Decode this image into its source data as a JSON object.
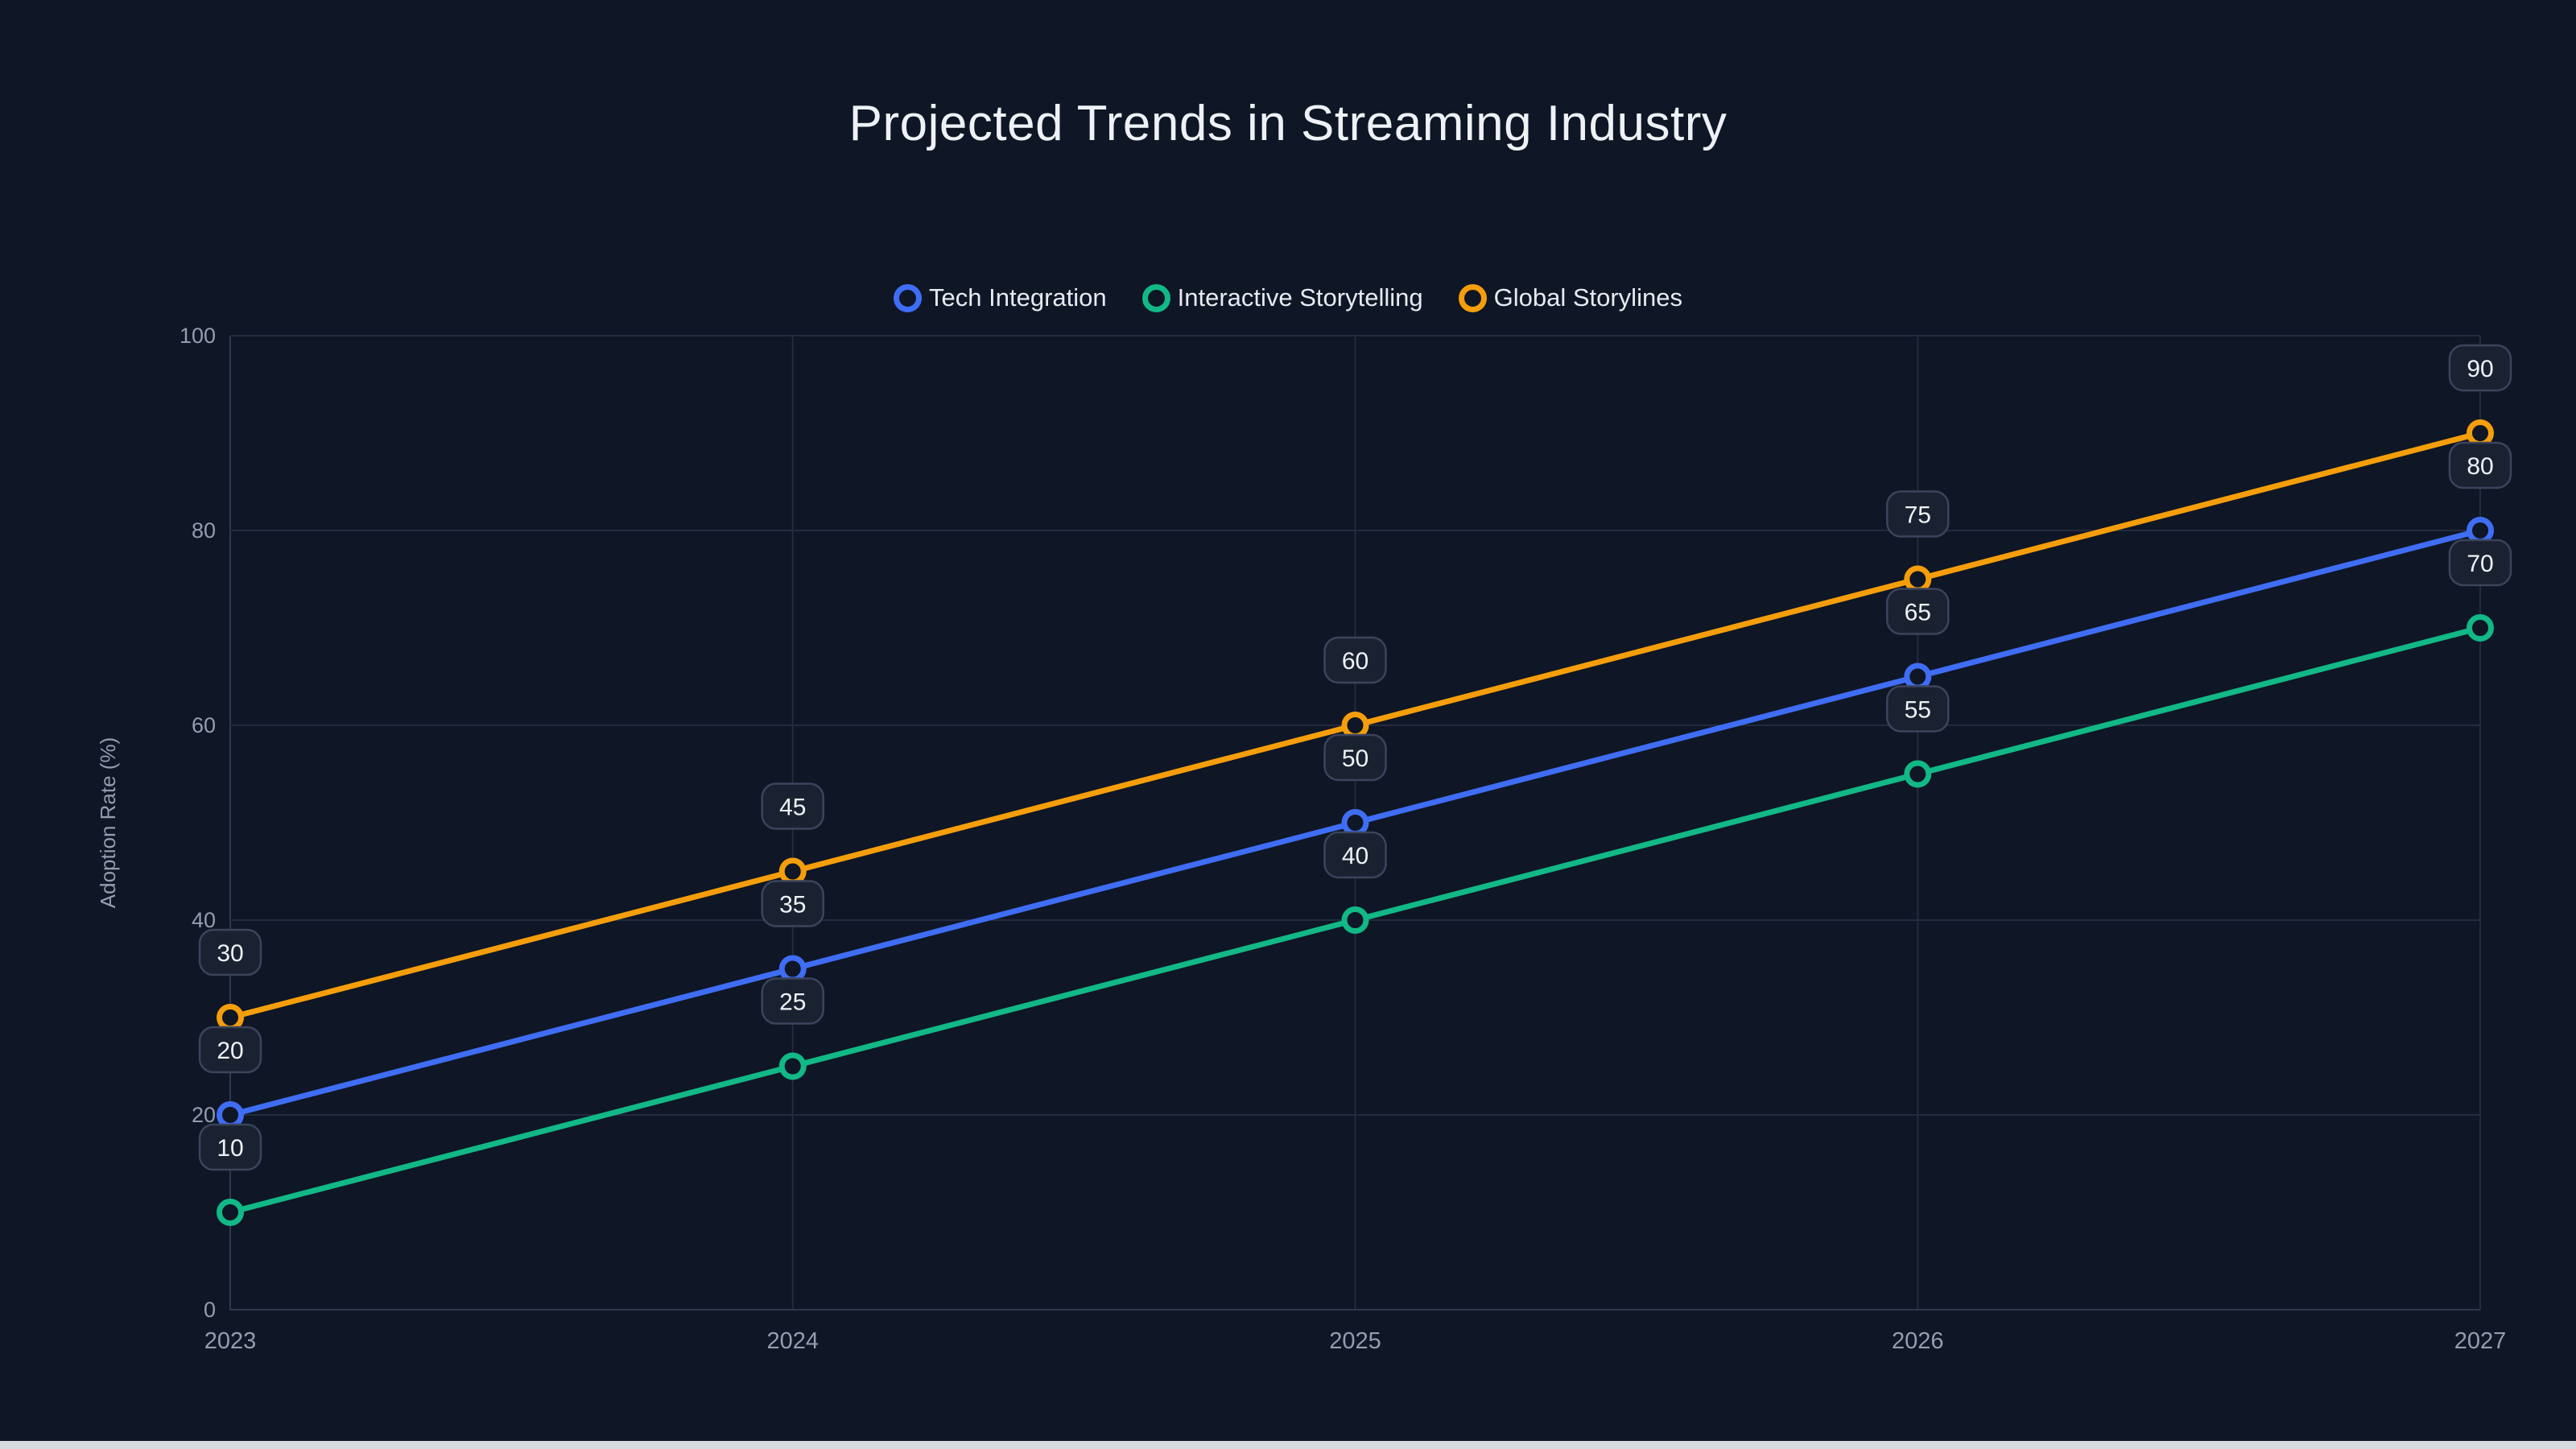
{
  "title": "Projected Trends in Streaming Industry",
  "y_axis": {
    "label": "Adoption Rate (%)"
  },
  "chart_data": {
    "type": "line",
    "title": "Projected Trends in Streaming Industry",
    "x": [
      "2023",
      "2024",
      "2025",
      "2026",
      "2027"
    ],
    "series": [
      {
        "name": "Tech Integration",
        "color": "#3f6df4",
        "values": [
          20,
          35,
          50,
          65,
          80
        ]
      },
      {
        "name": "Interactive Storytelling",
        "color": "#12b886",
        "values": [
          10,
          25,
          40,
          55,
          70
        ]
      },
      {
        "name": "Global Storylines",
        "color": "#f59e0b",
        "values": [
          30,
          45,
          60,
          75,
          90
        ]
      }
    ],
    "xlabel": "",
    "ylabel": "Adoption Rate (%)",
    "ylim": [
      0,
      100
    ],
    "yticks": [
      0,
      20,
      40,
      60,
      80,
      100
    ],
    "grid": true,
    "legend_position": "top",
    "point_labels": true
  },
  "colors": {
    "background": "#0f1625",
    "grid": "#222b3f",
    "axis_line": "#2e3850",
    "axis_text": "#949db0",
    "badge_bg": "#1a2232",
    "badge_border": "#3a445c",
    "badge_text": "#f0f2f6",
    "title_text": "#eef1f5",
    "legend_text": "#e7eaf0"
  }
}
